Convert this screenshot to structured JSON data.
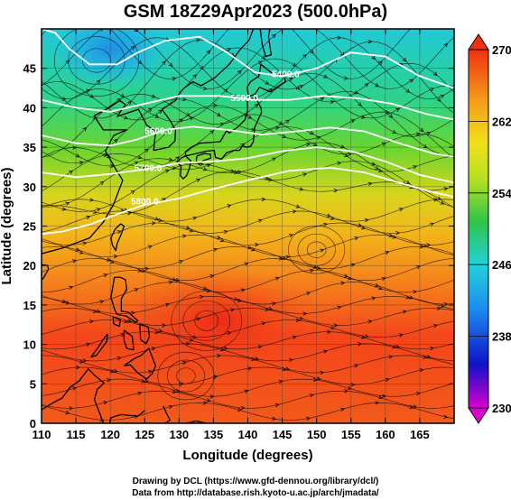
{
  "title": "GSM 18Z29Apr2023 (500.0hPa)",
  "map": {
    "xlabel": "Longitude (degrees)",
    "ylabel": "Latitude  (degrees)",
    "xlim": [
      110,
      170
    ],
    "ylim": [
      0,
      50
    ],
    "x_ticks": [
      "110",
      "115",
      "120",
      "125",
      "130",
      "135",
      "140",
      "145",
      "150",
      "155",
      "160",
      "165"
    ],
    "y_ticks": [
      "0",
      "5",
      "10",
      "15",
      "20",
      "25",
      "30",
      "35",
      "40",
      "45"
    ]
  },
  "colorbar": {
    "min": 230,
    "max": 270,
    "labels": [
      "230",
      "238",
      "246",
      "254",
      "262",
      "270"
    ]
  },
  "contours": [
    {
      "label": "5400.0"
    },
    {
      "label": "5500.0"
    },
    {
      "label": "5600.0"
    },
    {
      "label": "5700.0"
    },
    {
      "label": "5800.0"
    }
  ],
  "credits": {
    "line1": "Drawing by DCL (https://www.gfd-dennou.org/library/dcl/)",
    "line2": "Data from http://database.rish.kyoto-u.ac.jp/arch/jmadata/"
  }
}
